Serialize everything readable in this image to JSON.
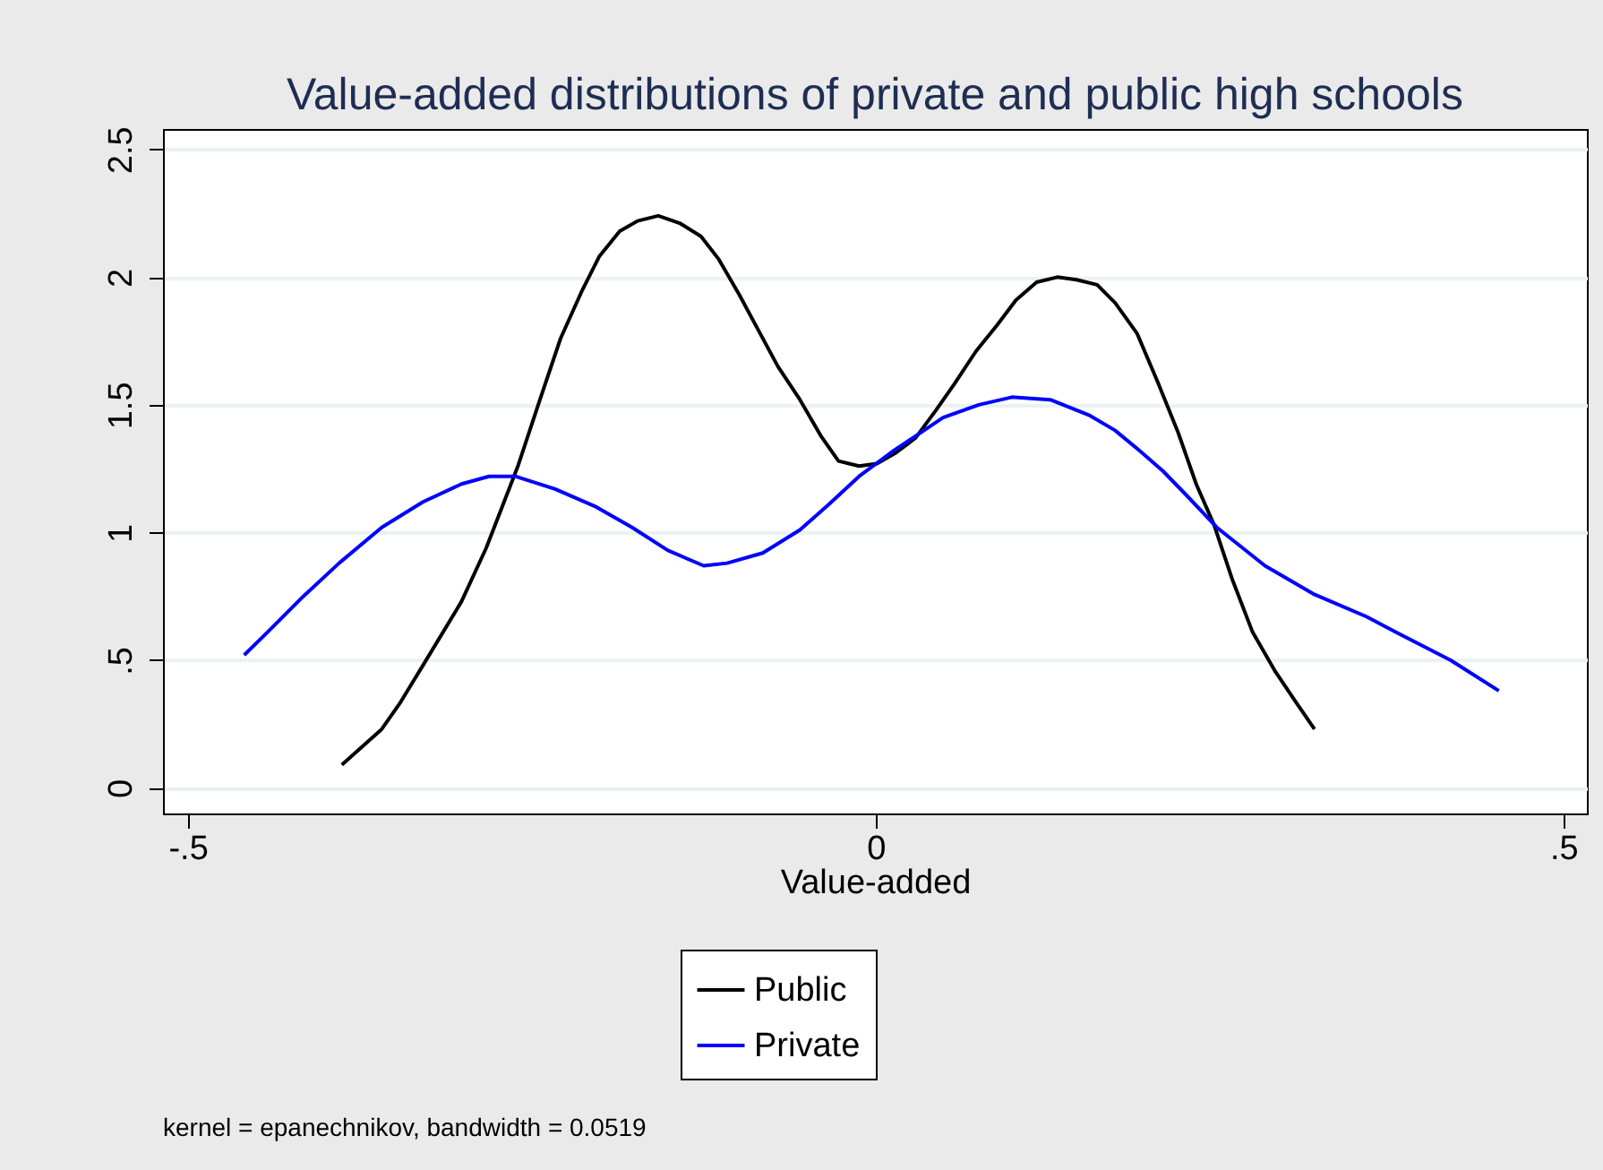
{
  "chart_data": {
    "type": "line",
    "title": "Value-added distributions of private and public high schools",
    "xlabel": "Value-added",
    "xlim": [
      -0.518,
      0.517
    ],
    "ylim": [
      -0.1,
      2.58
    ],
    "xticks": [
      {
        "value": -0.5,
        "label": "-.5"
      },
      0,
      {
        "value": 0.5,
        "label": ".5"
      }
    ],
    "yticks": [
      0,
      {
        "value": 0.5,
        "label": ".5"
      },
      1,
      1.5,
      2,
      2.5
    ],
    "grid": "y",
    "legend": "bottom",
    "line_style": "solid",
    "marker": "none",
    "annotations": [
      "kernel = epanechnikov, bandwidth = 0.0519"
    ],
    "series": [
      {
        "name": "Public",
        "color": "#000000",
        "x": [
          -0.388,
          -0.359,
          -0.346,
          -0.329,
          -0.301,
          -0.283,
          -0.26,
          -0.244,
          -0.229,
          -0.214,
          -0.201,
          -0.186,
          -0.173,
          -0.158,
          -0.142,
          -0.127,
          -0.114,
          -0.099,
          -0.086,
          -0.071,
          -0.055,
          -0.04,
          -0.027,
          -0.012,
          0.001,
          0.014,
          0.029,
          0.044,
          0.057,
          0.073,
          0.088,
          0.102,
          0.117,
          0.132,
          0.146,
          0.161,
          0.174,
          0.19,
          0.205,
          0.22,
          0.233,
          0.246,
          0.259,
          0.274,
          0.29,
          0.305,
          0.319
        ],
        "values": [
          0.09,
          0.23,
          0.33,
          0.48,
          0.73,
          0.94,
          1.26,
          1.52,
          1.76,
          1.94,
          2.08,
          2.18,
          2.22,
          2.24,
          2.21,
          2.16,
          2.07,
          1.93,
          1.8,
          1.65,
          1.52,
          1.38,
          1.28,
          1.26,
          1.27,
          1.31,
          1.37,
          1.48,
          1.58,
          1.71,
          1.81,
          1.91,
          1.98,
          2.0,
          1.99,
          1.97,
          1.9,
          1.78,
          1.59,
          1.39,
          1.19,
          1.03,
          0.82,
          0.61,
          0.46,
          0.34,
          0.23
        ]
      },
      {
        "name": "Private",
        "color": "#0000ff",
        "x": [
          -0.459,
          -0.442,
          -0.416,
          -0.39,
          -0.359,
          -0.329,
          -0.301,
          -0.281,
          -0.262,
          -0.233,
          -0.203,
          -0.177,
          -0.151,
          -0.125,
          -0.108,
          -0.082,
          -0.055,
          -0.034,
          -0.012,
          0.013,
          0.027,
          0.049,
          0.075,
          0.099,
          0.127,
          0.155,
          0.174,
          0.192,
          0.209,
          0.227,
          0.248,
          0.283,
          0.318,
          0.357,
          0.378,
          0.418,
          0.453
        ],
        "values": [
          0.52,
          0.61,
          0.75,
          0.88,
          1.02,
          1.12,
          1.19,
          1.22,
          1.22,
          1.17,
          1.1,
          1.02,
          0.93,
          0.87,
          0.88,
          0.92,
          1.01,
          1.11,
          1.22,
          1.32,
          1.37,
          1.45,
          1.5,
          1.53,
          1.52,
          1.46,
          1.4,
          1.32,
          1.24,
          1.14,
          1.02,
          0.87,
          0.76,
          0.67,
          0.61,
          0.5,
          0.38
        ]
      }
    ]
  }
}
